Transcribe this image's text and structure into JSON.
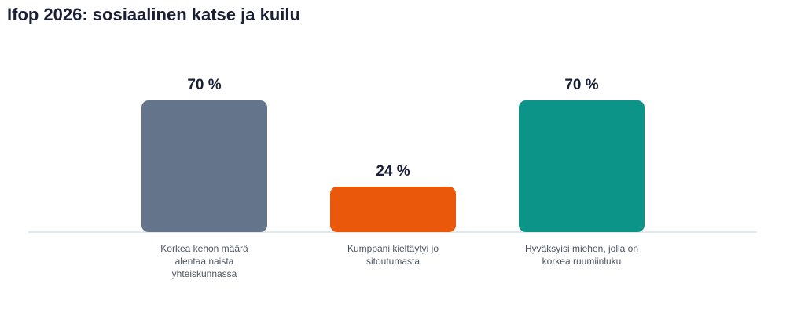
{
  "chart_data": {
    "type": "bar",
    "title": "Ifop 2026: sosiaalinen katse ja kuilu",
    "categories": [
      "Korkea kehon määrä alentaa naista yhteiskunnassa",
      "Kumppani kieltäytyi jo sitoutumasta",
      "Hyväksyisi miehen, jolla on korkea ruumiinluku"
    ],
    "values": [
      70,
      24,
      70
    ],
    "value_labels": [
      "70 %",
      "24 %",
      "70 %"
    ],
    "colors": [
      "#64748b",
      "#ea580c",
      "#0d9488"
    ],
    "ylim": [
      0,
      70
    ]
  }
}
